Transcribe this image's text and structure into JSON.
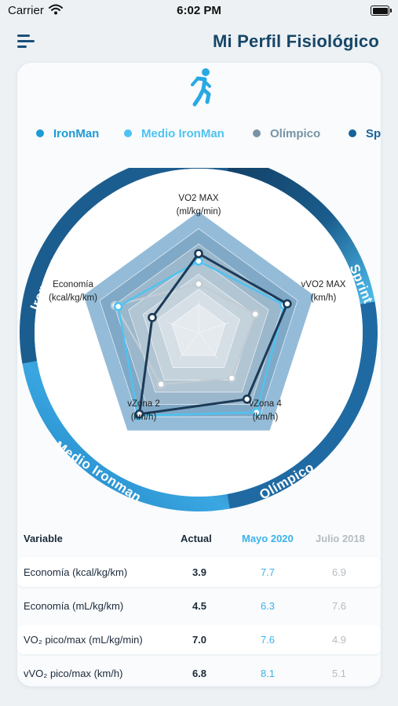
{
  "status": {
    "carrier": "Carrier",
    "time": "6:02 PM"
  },
  "header": {
    "title": "Mi Perfil Fisiológico"
  },
  "legend": [
    {
      "label": "IronMan",
      "color": "#1d9bd6"
    },
    {
      "label": "Medio IronMan",
      "color": "#4dc3f2"
    },
    {
      "label": "Olímpico",
      "color": "#7893a6"
    },
    {
      "label": "Sprint",
      "color": "#18629a"
    }
  ],
  "chart_data": {
    "type": "radar",
    "axes": [
      {
        "name": "VO2 MAX",
        "unit": "(ml/kg/min)"
      },
      {
        "name": "vVO2 MAX",
        "unit": "(km/h)"
      },
      {
        "name": "vZona 4",
        "unit": "(km/h)"
      },
      {
        "name": "vZona 2",
        "unit": "(km/h)"
      },
      {
        "name": "Economía",
        "unit": "(kcal/kg/km)"
      }
    ],
    "ring_labels": [
      "Ironman",
      "Sprint",
      "Olímpico",
      "Medio Ironman"
    ],
    "series": [
      {
        "values": [
          0.73,
          0.86,
          0.76,
          0.93,
          0.45
        ],
        "color": "#1b3a57"
      },
      {
        "values": [
          0.66,
          0.83,
          0.91,
          0.95,
          0.78
        ],
        "color": "#4dc3f2"
      },
      {
        "values": [
          0.45,
          0.55,
          0.52,
          0.59,
          0.81
        ],
        "color": "#c2ccd4"
      }
    ]
  },
  "table": {
    "headers": {
      "variable": "Variable",
      "actual": "Actual",
      "may": "Mayo 2020",
      "jul": "Julio 2018"
    },
    "rows": [
      {
        "variable": "Economía (kcal/kg/km)",
        "actual": "3.9",
        "may": "7.7",
        "jul": "6.9"
      },
      {
        "variable": "Economía (mL/kg/km)",
        "actual": "4.5",
        "may": "6.3",
        "jul": "7.6"
      },
      {
        "variable": "VO₂ pico/max (mL/kg/min)",
        "actual": "7.0",
        "may": "7.6",
        "jul": "4.9"
      },
      {
        "variable": "vVO₂ pico/max (km/h)",
        "actual": "6.8",
        "may": "8.1",
        "jul": "5.1"
      }
    ]
  }
}
